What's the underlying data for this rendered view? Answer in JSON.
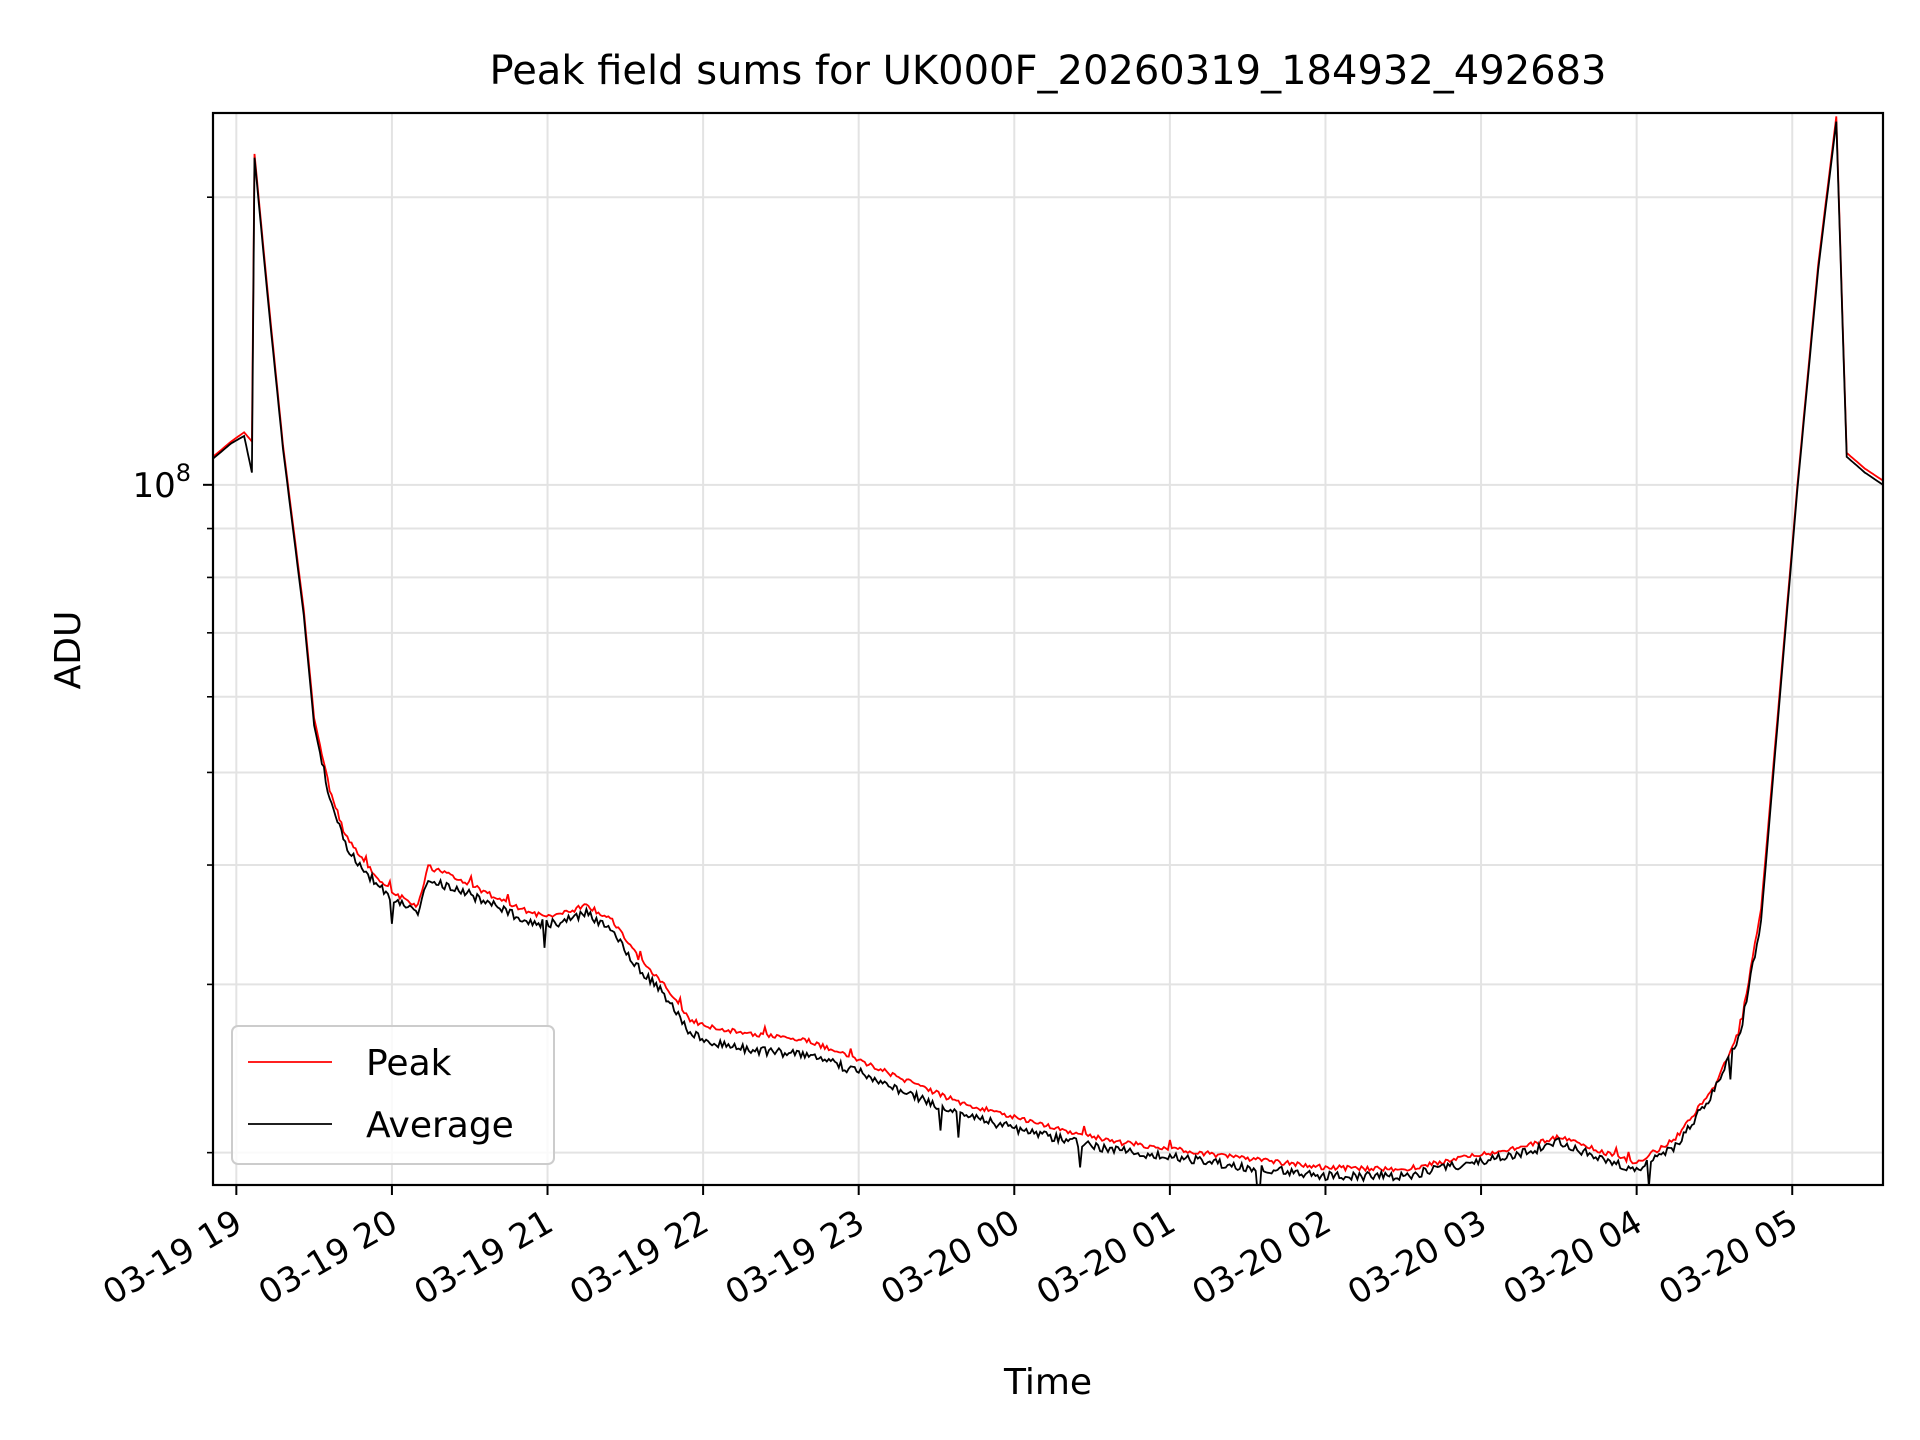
{
  "chart_data": {
    "type": "line",
    "title": "Peak field sums for UK000F_20260319_184932_492683",
    "xlabel": "Time",
    "ylabel": "ADU",
    "yscale": "log",
    "xlim": [
      "2026-03-19T18:51",
      "2026-03-20T05:35"
    ],
    "ylim": [
      18500000,
      245000000
    ],
    "grid": true,
    "legend": "lower-left",
    "x_ticks": [
      {
        "label": "03-19 19",
        "time": "2026-03-19T19:00"
      },
      {
        "label": "03-19 20",
        "time": "2026-03-19T20:00"
      },
      {
        "label": "03-19 21",
        "time": "2026-03-19T21:00"
      },
      {
        "label": "03-19 22",
        "time": "2026-03-19T22:00"
      },
      {
        "label": "03-19 23",
        "time": "2026-03-19T23:00"
      },
      {
        "label": "03-20 00",
        "time": "2026-03-20T00:00"
      },
      {
        "label": "03-20 01",
        "time": "2026-03-20T01:00"
      },
      {
        "label": "03-20 02",
        "time": "2026-03-20T02:00"
      },
      {
        "label": "03-20 03",
        "time": "2026-03-20T03:00"
      },
      {
        "label": "03-20 04",
        "time": "2026-03-20T04:00"
      },
      {
        "label": "03-20 05",
        "time": "2026-03-20T05:00"
      }
    ],
    "y_ticks": [
      {
        "base": "10",
        "exp": "8",
        "value": 100000000
      }
    ],
    "series": [
      {
        "name": "Peak",
        "color": "#ff0000",
        "points": [
          [
            "2026-03-19T18:51",
            107000000
          ],
          [
            "2026-03-19T18:58",
            111000000
          ],
          [
            "2026-03-19T19:03",
            113500000
          ],
          [
            "2026-03-19T19:06",
            111000000
          ],
          [
            "2026-03-19T19:07",
            222000000
          ],
          [
            "2026-03-19T19:12",
            160000000
          ],
          [
            "2026-03-19T19:18",
            110000000
          ],
          [
            "2026-03-19T19:26",
            74000000
          ],
          [
            "2026-03-19T19:30",
            57000000
          ],
          [
            "2026-03-19T19:36",
            48000000
          ],
          [
            "2026-03-19T19:42",
            43000000
          ],
          [
            "2026-03-19T19:50",
            40000000
          ],
          [
            "2026-03-19T20:00",
            37500000
          ],
          [
            "2026-03-19T20:10",
            36200000
          ],
          [
            "2026-03-19T20:14",
            39800000
          ],
          [
            "2026-03-19T20:25",
            38800000
          ],
          [
            "2026-03-19T20:40",
            37000000
          ],
          [
            "2026-03-19T20:55",
            35500000
          ],
          [
            "2026-03-19T21:05",
            35500000
          ],
          [
            "2026-03-19T21:15",
            36300000
          ],
          [
            "2026-03-19T21:25",
            35000000
          ],
          [
            "2026-03-19T21:35",
            32000000
          ],
          [
            "2026-03-19T21:45",
            30000000
          ],
          [
            "2026-03-19T21:55",
            27500000
          ],
          [
            "2026-03-19T22:05",
            27000000
          ],
          [
            "2026-03-19T22:20",
            26600000
          ],
          [
            "2026-03-19T22:40",
            26200000
          ],
          [
            "2026-03-19T23:00",
            25000000
          ],
          [
            "2026-03-19T23:20",
            23700000
          ],
          [
            "2026-03-19T23:40",
            22500000
          ],
          [
            "2026-03-20T00:00",
            21800000
          ],
          [
            "2026-03-20T00:20",
            21100000
          ],
          [
            "2026-03-20T00:40",
            20500000
          ],
          [
            "2026-03-20T01:00",
            20200000
          ],
          [
            "2026-03-20T01:30",
            19700000
          ],
          [
            "2026-03-20T02:00",
            19300000
          ],
          [
            "2026-03-20T02:30",
            19200000
          ],
          [
            "2026-03-20T02:55",
            19800000
          ],
          [
            "2026-03-20T03:20",
            20400000
          ],
          [
            "2026-03-20T03:30",
            20800000
          ],
          [
            "2026-03-20T03:45",
            20100000
          ],
          [
            "2026-03-20T04:00",
            19500000
          ],
          [
            "2026-03-20T04:15",
            20700000
          ],
          [
            "2026-03-20T04:30",
            23500000
          ],
          [
            "2026-03-20T04:40",
            27000000
          ],
          [
            "2026-03-20T04:48",
            36000000
          ],
          [
            "2026-03-20T04:55",
            60000000
          ],
          [
            "2026-03-20T05:02",
            100000000
          ],
          [
            "2026-03-20T05:10",
            170000000
          ],
          [
            "2026-03-20T05:17",
            243000000
          ],
          [
            "2026-03-20T05:21",
            108000000
          ],
          [
            "2026-03-20T05:28",
            104000000
          ],
          [
            "2026-03-20T05:35",
            101000000
          ]
        ]
      },
      {
        "name": "Average",
        "color": "#000000",
        "points": [
          [
            "2026-03-19T18:51",
            106500000
          ],
          [
            "2026-03-19T18:58",
            110500000
          ],
          [
            "2026-03-19T19:03",
            112500000
          ],
          [
            "2026-03-19T19:06",
            103000000
          ],
          [
            "2026-03-19T19:07",
            220000000
          ],
          [
            "2026-03-19T19:12",
            158000000
          ],
          [
            "2026-03-19T19:18",
            109000000
          ],
          [
            "2026-03-19T19:26",
            73000000
          ],
          [
            "2026-03-19T19:30",
            56000000
          ],
          [
            "2026-03-19T19:36",
            47000000
          ],
          [
            "2026-03-19T19:42",
            42000000
          ],
          [
            "2026-03-19T19:50",
            39300000
          ],
          [
            "2026-03-19T20:00",
            36800000
          ],
          [
            "2026-03-19T20:10",
            35600000
          ],
          [
            "2026-03-19T20:14",
            38500000
          ],
          [
            "2026-03-19T20:25",
            37800000
          ],
          [
            "2026-03-19T20:40",
            36200000
          ],
          [
            "2026-03-19T20:55",
            34700000
          ],
          [
            "2026-03-19T21:05",
            34800000
          ],
          [
            "2026-03-19T21:15",
            35600000
          ],
          [
            "2026-03-19T21:25",
            34200000
          ],
          [
            "2026-03-19T21:35",
            31200000
          ],
          [
            "2026-03-19T21:45",
            29300000
          ],
          [
            "2026-03-19T21:55",
            26700000
          ],
          [
            "2026-03-19T22:05",
            26000000
          ],
          [
            "2026-03-19T22:20",
            25600000
          ],
          [
            "2026-03-19T22:40",
            25300000
          ],
          [
            "2026-03-19T23:00",
            24300000
          ],
          [
            "2026-03-19T23:20",
            23000000
          ],
          [
            "2026-03-19T23:40",
            21900000
          ],
          [
            "2026-03-20T00:00",
            21200000
          ],
          [
            "2026-03-20T00:20",
            20600000
          ],
          [
            "2026-03-20T00:40",
            20100000
          ],
          [
            "2026-03-20T01:00",
            19800000
          ],
          [
            "2026-03-20T01:30",
            19300000
          ],
          [
            "2026-03-20T02:00",
            18900000
          ],
          [
            "2026-03-20T02:30",
            18900000
          ],
          [
            "2026-03-20T02:55",
            19500000
          ],
          [
            "2026-03-20T03:20",
            20100000
          ],
          [
            "2026-03-20T03:30",
            20500000
          ],
          [
            "2026-03-20T03:45",
            19800000
          ],
          [
            "2026-03-20T04:00",
            19200000
          ],
          [
            "2026-03-20T04:15",
            20300000
          ],
          [
            "2026-03-20T04:30",
            23200000
          ],
          [
            "2026-03-20T04:40",
            26700000
          ],
          [
            "2026-03-20T04:48",
            35000000
          ],
          [
            "2026-03-20T04:55",
            59000000
          ],
          [
            "2026-03-20T05:02",
            99000000
          ],
          [
            "2026-03-20T05:10",
            168000000
          ],
          [
            "2026-03-20T05:17",
            240000000
          ],
          [
            "2026-03-20T05:21",
            107000000
          ],
          [
            "2026-03-20T05:28",
            103000000
          ],
          [
            "2026-03-20T05:35",
            100000000
          ]
        ]
      }
    ]
  }
}
